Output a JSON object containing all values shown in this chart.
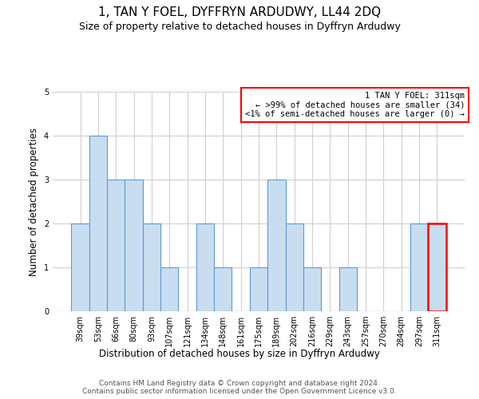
{
  "title": "1, TAN Y FOEL, DYFFRYN ARDUDWY, LL44 2DQ",
  "subtitle": "Size of property relative to detached houses in Dyffryn Ardudwy",
  "xlabel": "Distribution of detached houses by size in Dyffryn Ardudwy",
  "ylabel": "Number of detached properties",
  "categories": [
    "39sqm",
    "53sqm",
    "66sqm",
    "80sqm",
    "93sqm",
    "107sqm",
    "121sqm",
    "134sqm",
    "148sqm",
    "161sqm",
    "175sqm",
    "189sqm",
    "202sqm",
    "216sqm",
    "229sqm",
    "243sqm",
    "257sqm",
    "270sqm",
    "284sqm",
    "297sqm",
    "311sqm"
  ],
  "values": [
    2,
    4,
    3,
    3,
    2,
    1,
    0,
    2,
    1,
    0,
    1,
    3,
    2,
    1,
    0,
    1,
    0,
    0,
    0,
    2,
    2
  ],
  "highlighted_index": 20,
  "bar_color": "#c9ddf0",
  "bar_edge_color": "#5b9bd5",
  "highlight_bar_edge_color": "red",
  "annotation_box_color": "white",
  "annotation_box_edge_color": "red",
  "annotation_text": "1 TAN Y FOEL: 311sqm\n← >99% of detached houses are smaller (34)\n<1% of semi-detached houses are larger (0) →",
  "annotation_fontsize": 7.5,
  "ylim": [
    0,
    5
  ],
  "yticks": [
    0,
    1,
    2,
    3,
    4,
    5
  ],
  "footer": "Contains HM Land Registry data © Crown copyright and database right 2024.\nContains public sector information licensed under the Open Government Licence v3.0.",
  "title_fontsize": 11,
  "subtitle_fontsize": 9,
  "xlabel_fontsize": 8.5,
  "ylabel_fontsize": 8.5,
  "footer_fontsize": 6.5,
  "tick_fontsize": 7,
  "grid_color": "#d0d0d0"
}
